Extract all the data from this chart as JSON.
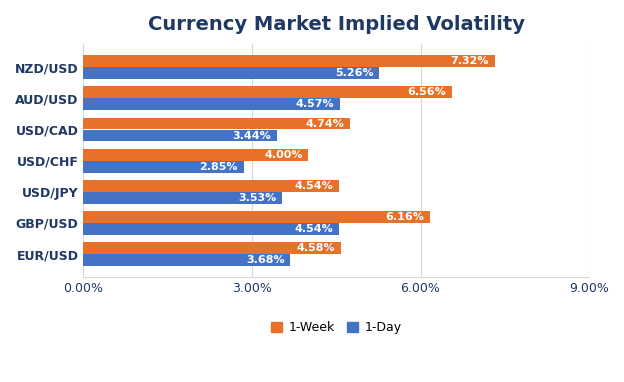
{
  "title": "Currency Market Implied Volatility",
  "categories": [
    "EUR/USD",
    "GBP/USD",
    "USD/JPY",
    "USD/CHF",
    "USD/CAD",
    "AUD/USD",
    "NZD/USD"
  ],
  "week1_values": [
    4.58,
    6.16,
    4.54,
    4.0,
    4.74,
    6.56,
    7.32
  ],
  "day1_values": [
    3.68,
    4.54,
    3.53,
    2.85,
    3.44,
    4.57,
    5.26
  ],
  "week1_labels": [
    "4.58%",
    "6.16%",
    "4.54%",
    "4.00%",
    "4.74%",
    "6.56%",
    "7.32%"
  ],
  "day1_labels": [
    "3.68%",
    "4.54%",
    "3.53%",
    "2.85%",
    "3.44%",
    "4.57%",
    "5.26%"
  ],
  "week1_color": "#E8712A",
  "day1_color": "#4472C4",
  "background_color": "#FFFFFF",
  "plot_bg_color": "#FFFFFF",
  "xlim": [
    0,
    9.0
  ],
  "xticks": [
    0.0,
    3.0,
    6.0,
    9.0
  ],
  "xtick_labels": [
    "0.00%",
    "3.00%",
    "6.00%",
    "9.00%"
  ],
  "title_fontsize": 14,
  "title_fontweight": "bold",
  "title_color": "#1F3864",
  "ytick_fontsize": 9,
  "xtick_fontsize": 9,
  "bar_height": 0.38,
  "bar_gap": 0.005,
  "legend_labels": [
    "1-Week",
    "1-Day"
  ],
  "grid_color": "#D9D9D9",
  "bar_label_color": "#FFFFFF",
  "bar_label_fontsize": 8.0,
  "yaxis_color": "#1F3864"
}
